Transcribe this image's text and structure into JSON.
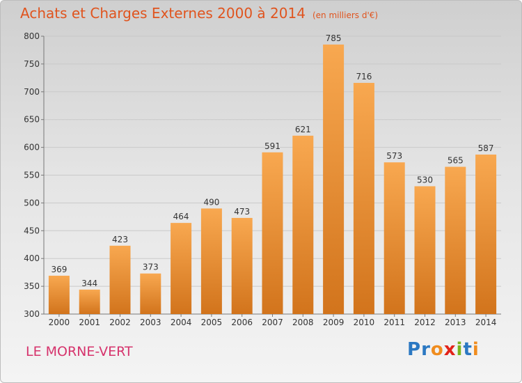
{
  "header": {
    "title": "Achats et Charges Externes 2000 à 2014",
    "unit": "(en milliers d'€)"
  },
  "footer": {
    "place": "LE MORNE-VERT",
    "logo": [
      "P",
      "r",
      "o",
      "x",
      "i",
      "t",
      "i"
    ],
    "logo_colors": [
      "#2b78c2",
      "#2b78c2",
      "#f08c1e",
      "#e2231a",
      "#7ab51d",
      "#2b78c2",
      "#f08c1e"
    ]
  },
  "colors": {
    "bar_top": "#f8a850",
    "bar_bottom": "#d2741c",
    "title": "#e0541e",
    "place": "#d6336c"
  },
  "chart_data": {
    "type": "bar",
    "categories": [
      "2000",
      "2001",
      "2002",
      "2003",
      "2004",
      "2005",
      "2006",
      "2007",
      "2008",
      "2009",
      "2010",
      "2011",
      "2012",
      "2013",
      "2014"
    ],
    "values": [
      369,
      344,
      423,
      373,
      464,
      490,
      473,
      591,
      621,
      785,
      716,
      573,
      530,
      565,
      587
    ],
    "ylim": [
      300,
      800
    ],
    "yticks": [
      300,
      350,
      400,
      450,
      500,
      550,
      600,
      650,
      700,
      750,
      800
    ],
    "grid": true
  }
}
